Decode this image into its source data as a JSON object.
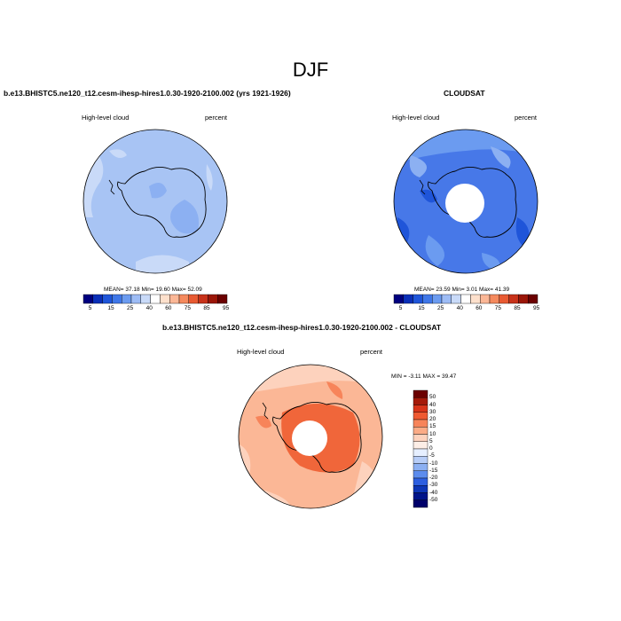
{
  "title": "DJF",
  "panels": {
    "model": {
      "title": "b.e13.BHISTC5.ne120_t12.cesm-ihesp-hires1.0.30-1920-2100.002 (yrs 1921-1926)",
      "left_label": "High-level cloud",
      "right_label": "percent",
      "stats": "MEAN= 37.18  Min= 19.60  Max= 52.09"
    },
    "obs": {
      "title": "CLOUDSAT",
      "left_label": "High-level cloud",
      "right_label": "percent",
      "stats": "MEAN= 23.59  Min= 3.01  Max= 41.39"
    },
    "diff": {
      "title": "b.e13.BHISTC5.ne120_t12.cesm-ihesp-hires1.0.30-1920-2100.002 - CLOUDSAT",
      "left_label": "High-level cloud",
      "right_label": "percent",
      "stats": "MIN = -3.11 MAX = 39.47"
    }
  },
  "colorbar_abs": {
    "labels": [
      "5",
      "15",
      "25",
      "40",
      "60",
      "75",
      "85",
      "95"
    ],
    "colors": [
      "#00007f",
      "#0a2fb8",
      "#1f55d9",
      "#3f77e8",
      "#6b9bf0",
      "#9dbcf5",
      "#c9daf8",
      "#ffffff",
      "#fde0cc",
      "#fbb796",
      "#f58a5e",
      "#e85a32",
      "#c8321a",
      "#9b1608",
      "#6b0000"
    ]
  },
  "colorbar_diff": {
    "labels": [
      "50",
      "40",
      "30",
      "20",
      "15",
      "10",
      "5",
      "0",
      "-5",
      "-10",
      "-15",
      "-20",
      "-30",
      "-40",
      "-50"
    ],
    "colors": [
      "#6b0000",
      "#a51a0a",
      "#d8341a",
      "#ef5a32",
      "#f7845a",
      "#fbab86",
      "#fdd2bd",
      "#fdeee6",
      "#e6efff",
      "#b7cdf7",
      "#8cb0f2",
      "#5c8ced",
      "#2d5fe0",
      "#0d36b6",
      "#00148a",
      "#00006a"
    ]
  },
  "map_colors": {
    "model_ocean": "#a8c4f4",
    "model_light": "#c9daf8",
    "model_mid": "#8cb0f2",
    "obs_base": "#4778e8",
    "obs_light": "#8cb0f2",
    "obs_dark": "#1f55d9",
    "diff_base": "#fbb796",
    "diff_light": "#fdd2bd",
    "diff_dark": "#f0663a"
  }
}
